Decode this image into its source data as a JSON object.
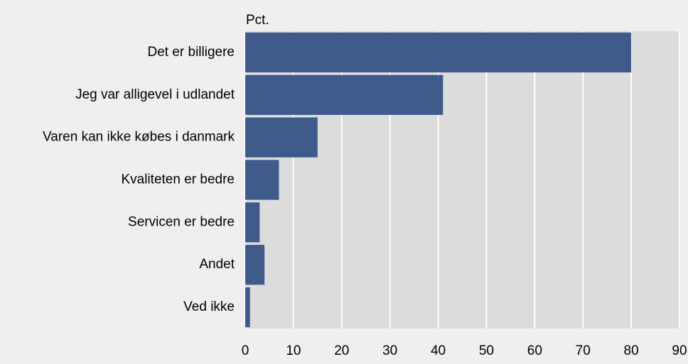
{
  "chart_data": {
    "type": "hbar",
    "value_axis_label": "Pct.",
    "categories": [
      "Det er billigere",
      "Jeg var alligevel i udlandet",
      "Varen kan ikke købes i danmark",
      "Kvaliteten er bedre",
      "Servicen er bedre",
      "Andet",
      "Ved ikke"
    ],
    "values": [
      80,
      41,
      15,
      7,
      3,
      4,
      1
    ],
    "color": "#3f5a8a",
    "xlim": [
      0,
      90
    ],
    "xticks": [
      0,
      10,
      20,
      30,
      40,
      50,
      60,
      70,
      80,
      90
    ],
    "grid": true
  }
}
